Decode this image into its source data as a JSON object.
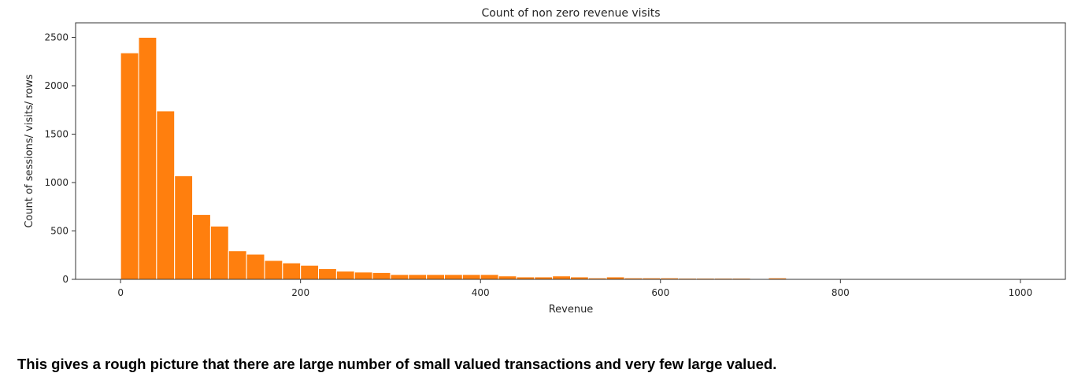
{
  "chart_data": {
    "type": "bar",
    "title": "Count of non zero revenue visits",
    "xlabel": "Revenue",
    "ylabel": "Count of sessions/ visits/ rows",
    "xlim": [
      -50,
      1050
    ],
    "ylim": [
      0,
      2650
    ],
    "xticks": [
      0,
      200,
      400,
      600,
      800,
      1000
    ],
    "yticks": [
      0,
      500,
      1000,
      1500,
      2000,
      2500
    ],
    "bin_width": 20,
    "grid": false,
    "color": "#ff7f0e",
    "bins": [
      {
        "x": 0,
        "value": 2340
      },
      {
        "x": 20,
        "value": 2500
      },
      {
        "x": 40,
        "value": 1740
      },
      {
        "x": 60,
        "value": 1070
      },
      {
        "x": 80,
        "value": 670
      },
      {
        "x": 100,
        "value": 550
      },
      {
        "x": 120,
        "value": 295
      },
      {
        "x": 140,
        "value": 260
      },
      {
        "x": 160,
        "value": 195
      },
      {
        "x": 180,
        "value": 170
      },
      {
        "x": 200,
        "value": 145
      },
      {
        "x": 220,
        "value": 110
      },
      {
        "x": 240,
        "value": 85
      },
      {
        "x": 260,
        "value": 75
      },
      {
        "x": 280,
        "value": 70
      },
      {
        "x": 300,
        "value": 50
      },
      {
        "x": 320,
        "value": 50
      },
      {
        "x": 340,
        "value": 50
      },
      {
        "x": 360,
        "value": 50
      },
      {
        "x": 380,
        "value": 50
      },
      {
        "x": 400,
        "value": 50
      },
      {
        "x": 420,
        "value": 35
      },
      {
        "x": 440,
        "value": 25
      },
      {
        "x": 460,
        "value": 25
      },
      {
        "x": 480,
        "value": 35
      },
      {
        "x": 500,
        "value": 25
      },
      {
        "x": 520,
        "value": 15
      },
      {
        "x": 540,
        "value": 25
      },
      {
        "x": 560,
        "value": 15
      },
      {
        "x": 580,
        "value": 15
      },
      {
        "x": 600,
        "value": 15
      },
      {
        "x": 620,
        "value": 12
      },
      {
        "x": 640,
        "value": 12
      },
      {
        "x": 660,
        "value": 12
      },
      {
        "x": 680,
        "value": 12
      },
      {
        "x": 720,
        "value": 15
      }
    ]
  },
  "caption": "This gives a rough picture that there are large number of small valued transactions and very few large valued."
}
